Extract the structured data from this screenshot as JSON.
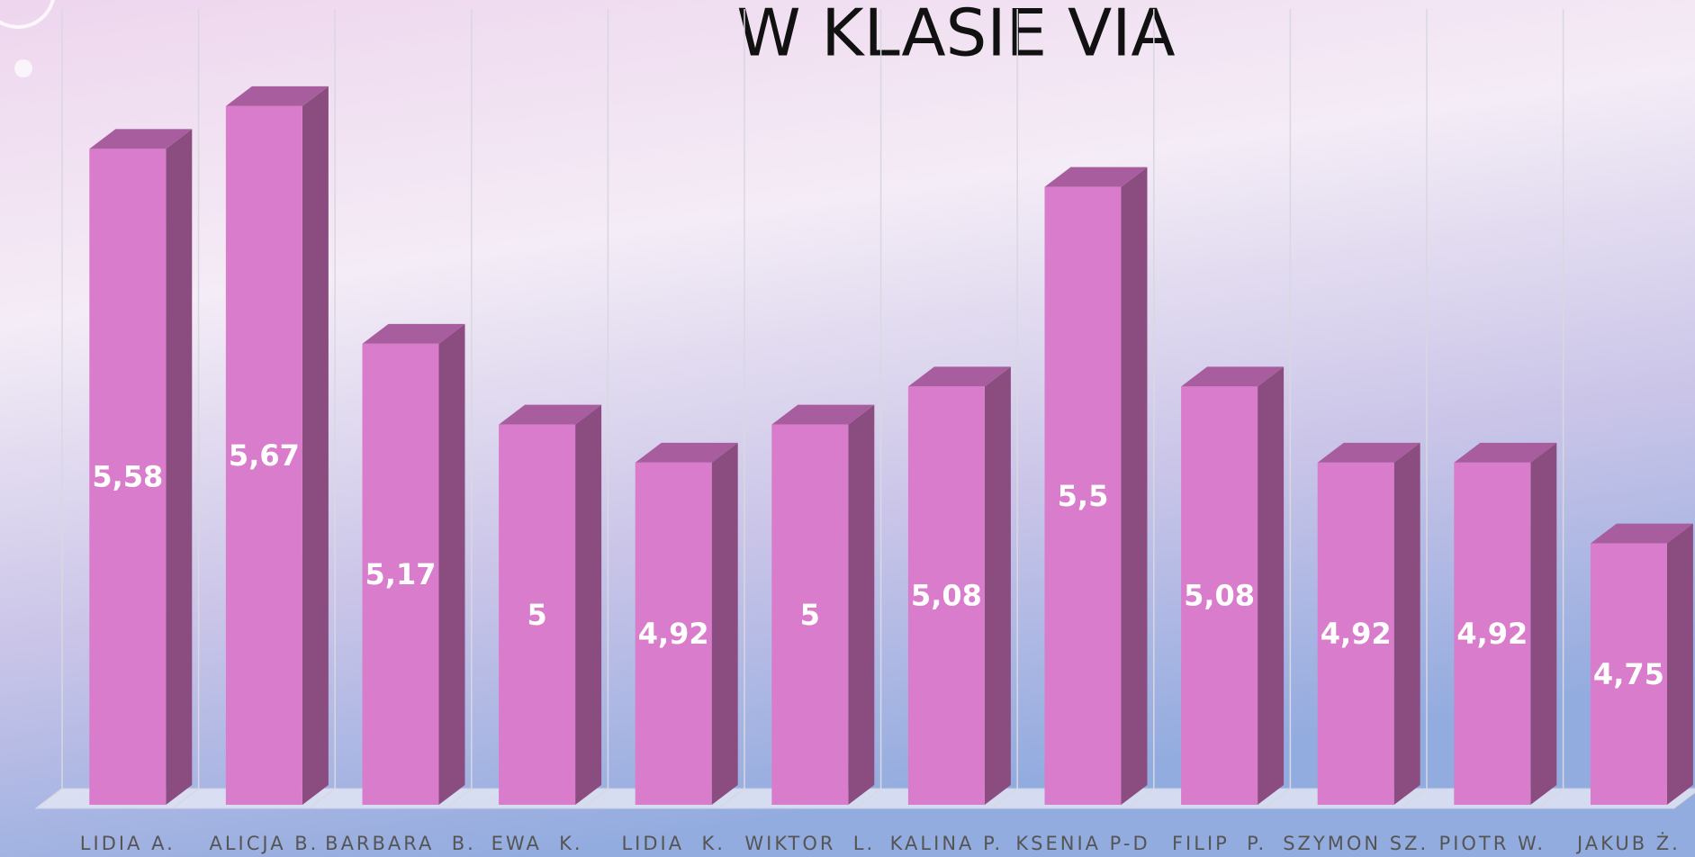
{
  "chart_data": {
    "type": "bar3d",
    "title": "W KLASIE VIA",
    "categories": [
      "LIDIA A.",
      "ALICJA B.",
      "BARBARA  B.",
      "EWA  K.",
      "LIDIA  K.",
      "WIKTOR  L.",
      "KALINA P.",
      "KSENIA P-D",
      "FILIP  P.",
      "SZYMON SZ.",
      "PIOTR W.",
      "JAKUB Ż."
    ],
    "values": [
      5.58,
      5.67,
      5.17,
      5,
      4.92,
      5,
      5.08,
      5.5,
      5.08,
      4.92,
      4.92,
      4.75
    ],
    "value_labels": [
      "5,58",
      "5,67",
      "5,17",
      "5",
      "4,92",
      "5",
      "5,08",
      "5,5",
      "5,08",
      "4,92",
      "4,92",
      "4,75"
    ],
    "color": "#d97ccb",
    "ylim": [
      4.2,
      5.8
    ]
  }
}
